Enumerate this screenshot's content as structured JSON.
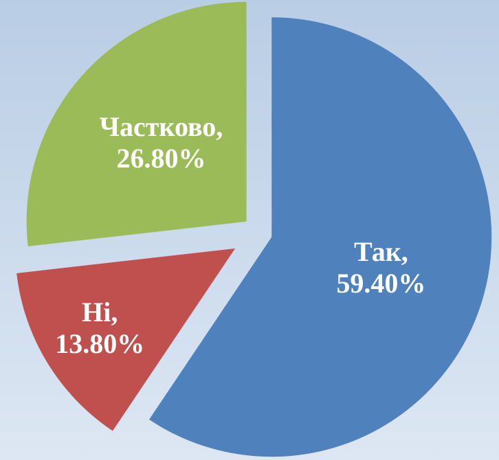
{
  "chart_data": {
    "type": "pie",
    "categories": [
      "Так,",
      "Ні,",
      "Частково,"
    ],
    "values": [
      59.4,
      13.8,
      26.8
    ],
    "value_labels": [
      "59.40%",
      "13.80%",
      "26.80%"
    ],
    "colors": [
      "#4f81bd",
      "#c0504d",
      "#9bbb59"
    ]
  }
}
